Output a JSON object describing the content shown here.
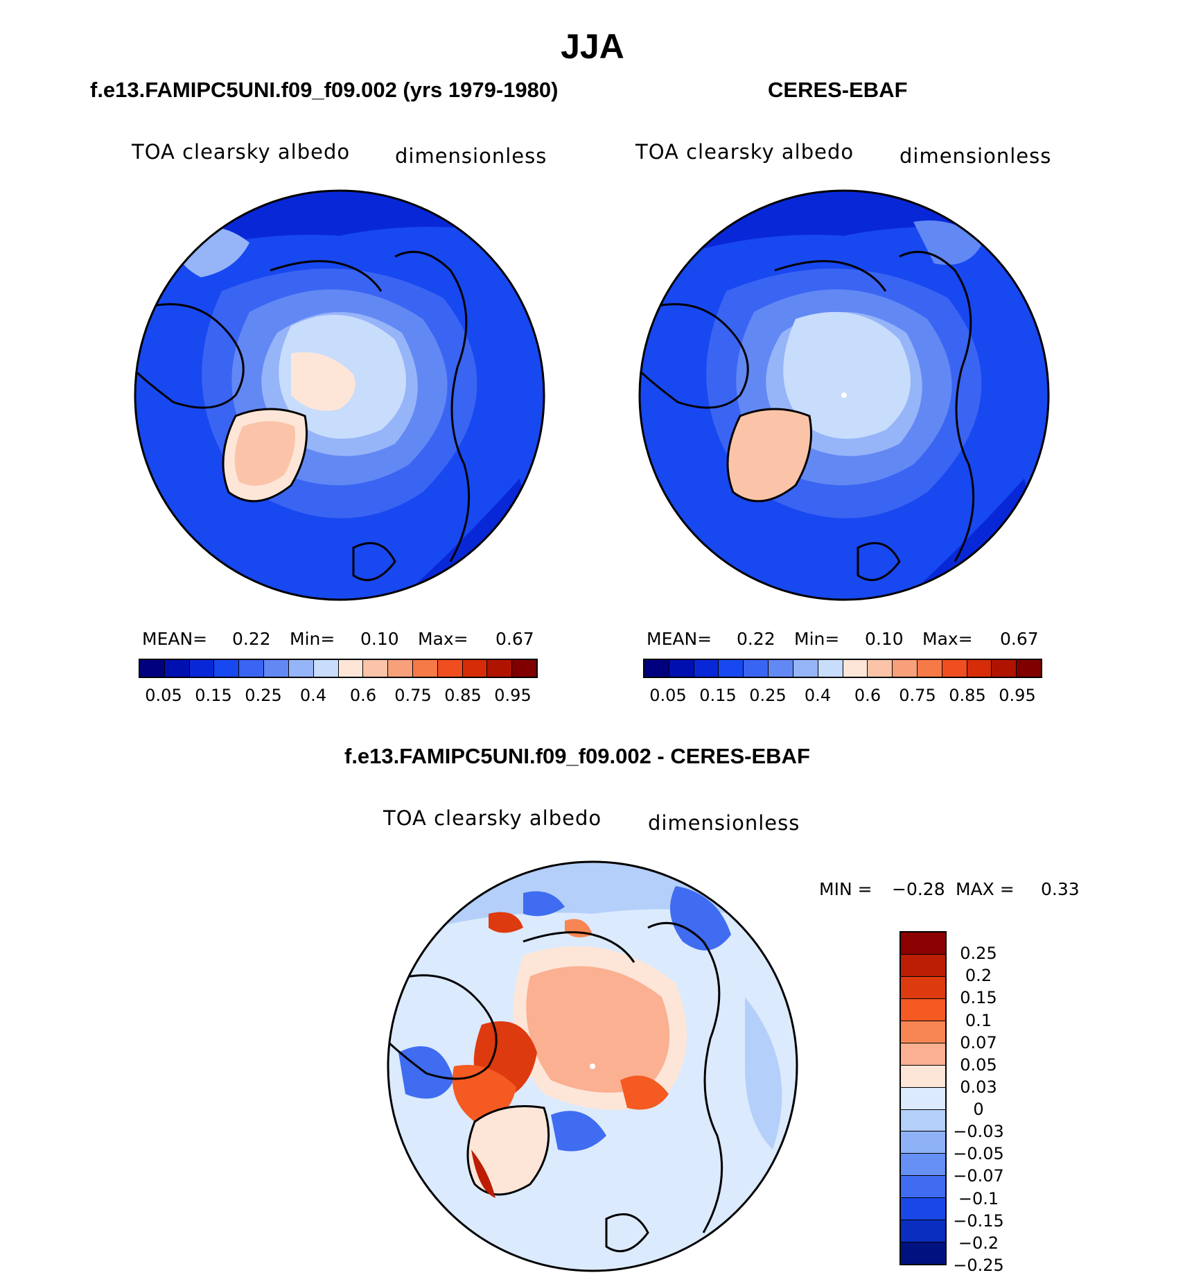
{
  "title": "JJA",
  "panels": [
    {
      "subtitle": "f.e13.FAMIPC5UNI.f09_f09.002 (yrs 1979-1980)",
      "variable": "TOA clearsky albedo",
      "units": "dimensionless",
      "stats": {
        "mean_label": "MEAN=",
        "mean": "0.22",
        "min_label": "Min=",
        "min": "0.10",
        "max_label": "Max=",
        "max": "0.67"
      }
    },
    {
      "subtitle": "CERES-EBAF",
      "variable": "TOA clearsky albedo",
      "units": "dimensionless",
      "stats": {
        "mean_label": "MEAN=",
        "mean": "0.22",
        "min_label": "Min=",
        "min": "0.10",
        "max_label": "Max=",
        "max": "0.67"
      }
    }
  ],
  "diff_panel": {
    "subtitle": "f.e13.FAMIPC5UNI.f09_f09.002 - CERES-EBAF",
    "variable": "TOA clearsky albedo",
    "units": "dimensionless",
    "stats": {
      "min_label": "MIN =",
      "min": "−0.28",
      "max_label": "MAX =",
      "max": "0.33"
    }
  },
  "colorbar_main": {
    "colors": [
      "#00007f",
      "#0010b0",
      "#0828d8",
      "#1848f0",
      "#3a64f2",
      "#6288f4",
      "#96b4f8",
      "#c8dcfc",
      "#fde6d8",
      "#fbc4a8",
      "#f8a07a",
      "#f57a48",
      "#f04e20",
      "#d62c08",
      "#b01400",
      "#800000"
    ],
    "ticks": [
      "0.05",
      "0.15",
      "0.25",
      "0.4",
      "0.6",
      "0.75",
      "0.85",
      "0.95"
    ]
  },
  "colorbar_diff": {
    "colors": [
      "#8b0000",
      "#bb1e05",
      "#de3a10",
      "#f55a22",
      "#f88654",
      "#fbb092",
      "#fde6d8",
      "#dbeafd",
      "#b4cff9",
      "#8fb2f6",
      "#6690f3",
      "#3f6cf0",
      "#1a48e6",
      "#0a2ec0",
      "#001280"
    ],
    "ticks": [
      "0.25",
      "0.2",
      "0.15",
      "0.1",
      "0.07",
      "0.05",
      "0.03",
      "0",
      "−0.03",
      "−0.05",
      "−0.07",
      "−0.1",
      "−0.15",
      "−0.2",
      "−0.25"
    ]
  }
}
